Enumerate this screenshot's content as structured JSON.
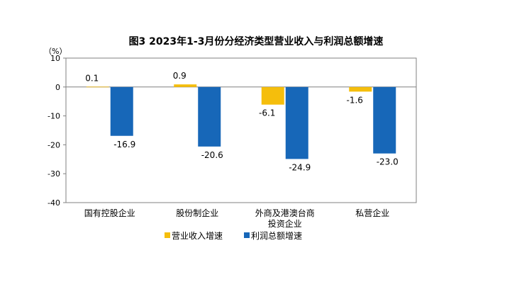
{
  "chart_data": {
    "type": "bar",
    "title": "图3  2023年1-3月份分经济类型营业收入与利润总额增速",
    "ylabel": "（%）",
    "categories": [
      "国有控股企业",
      "股份制企业",
      "外商及港澳台商\n投资企业",
      "私营企业"
    ],
    "series": [
      {
        "name": "营业收入增速",
        "color": "#F5BE0C",
        "values": [
          0.1,
          0.9,
          -6.1,
          -1.6
        ]
      },
      {
        "name": "利润总额增速",
        "color": "#1767B8",
        "values": [
          -16.9,
          -20.6,
          -24.9,
          -23.0
        ]
      }
    ],
    "ylim": [
      -40,
      10
    ],
    "yticks": [
      10,
      0,
      -10,
      -20,
      -30,
      -40
    ],
    "data_labels": [
      [
        "0.1",
        "0.9",
        "-6.1",
        "-1.6"
      ],
      [
        "-16.9",
        "-20.6",
        "-24.9",
        "-23.0"
      ]
    ],
    "grid": false,
    "legend": "bottom"
  }
}
